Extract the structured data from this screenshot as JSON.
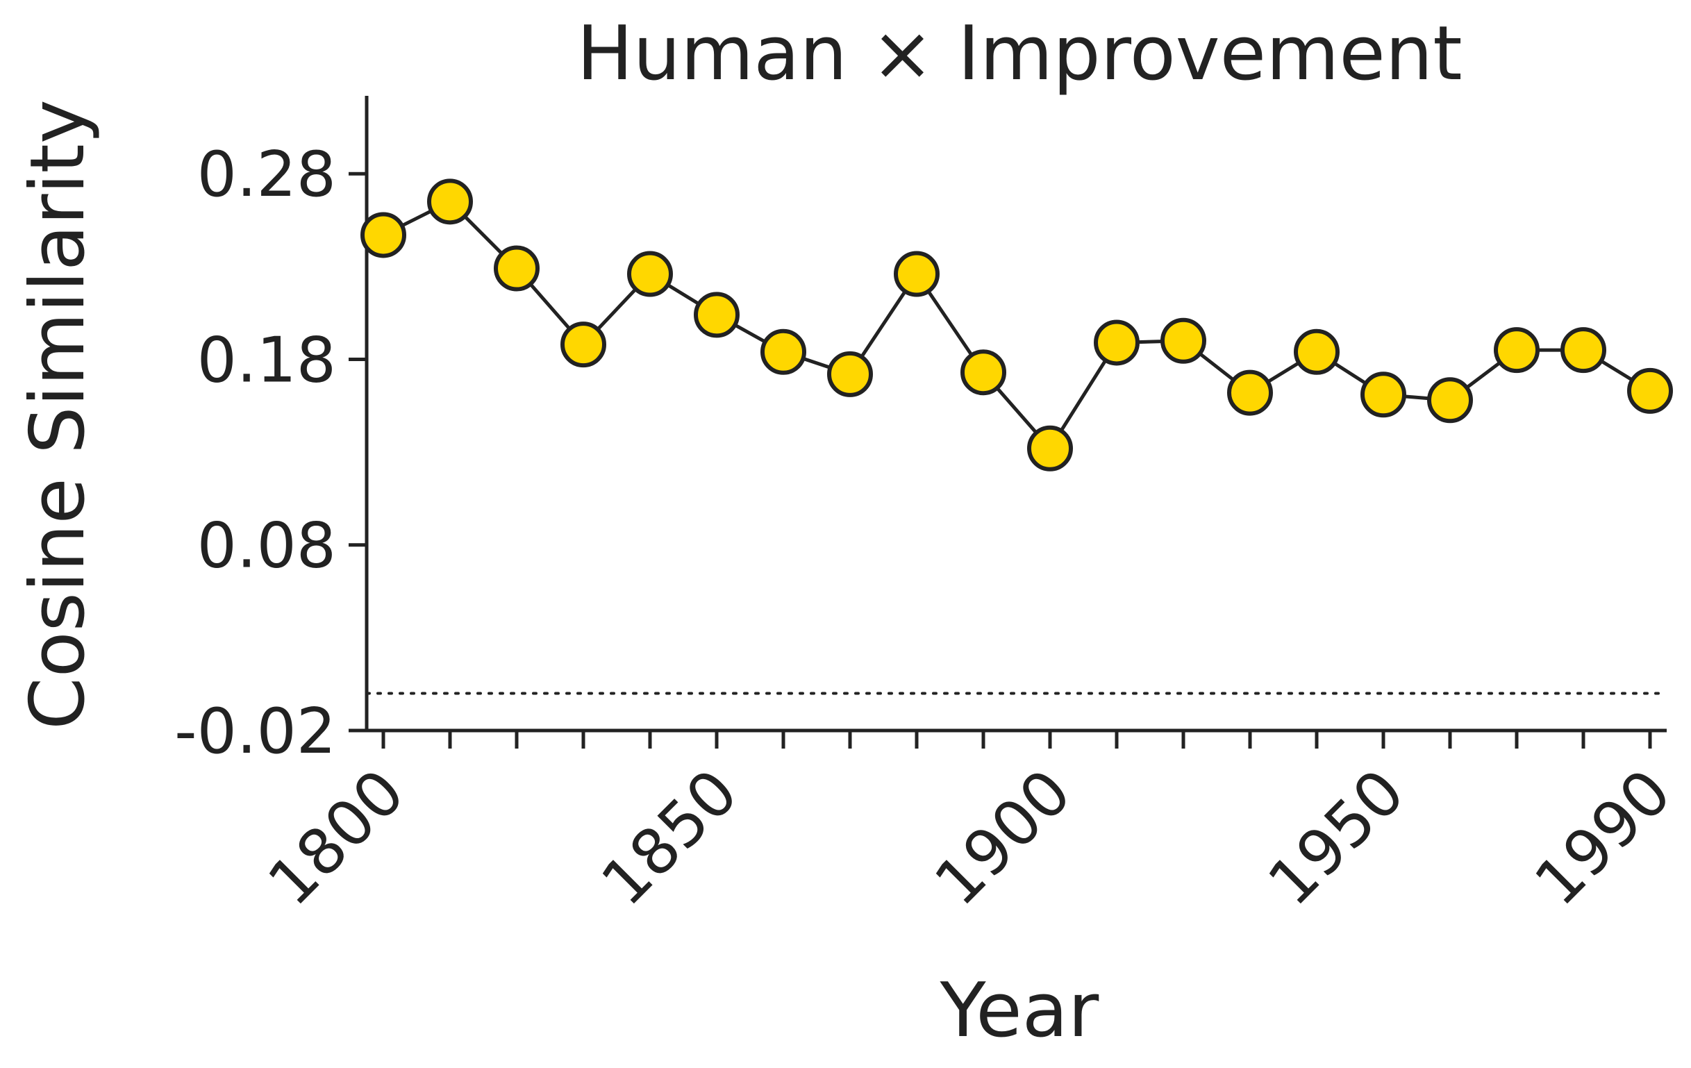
{
  "chart_data": {
    "type": "line",
    "title": "Human × Improvement",
    "xlabel": "Year",
    "ylabel": "Cosine Similarity",
    "x": [
      1800,
      1810,
      1820,
      1830,
      1840,
      1850,
      1860,
      1870,
      1880,
      1890,
      1900,
      1910,
      1920,
      1930,
      1940,
      1950,
      1960,
      1970,
      1980,
      1990
    ],
    "series": [
      {
        "values": [
          0.247,
          0.265,
          0.229,
          0.188,
          0.226,
          0.204,
          0.184,
          0.172,
          0.226,
          0.173,
          0.132,
          0.189,
          0.19,
          0.162,
          0.184,
          0.161,
          0.158,
          0.185,
          0.185,
          0.163
        ],
        "color": "#FFD700"
      }
    ],
    "reference_line": {
      "y": 0.0
    },
    "xlim": [
      1797.5,
      1992.5
    ],
    "ylim": [
      -0.02,
      0.322
    ],
    "yticks": [
      -0.02,
      0.08,
      0.18,
      0.28
    ],
    "ytick_labels": [
      "-0.02",
      "0.08",
      "0.18",
      "0.28"
    ],
    "xtick_labels": [
      "1800",
      "1850",
      "1900",
      "1950",
      "1990"
    ],
    "grid": false,
    "legend": "none"
  }
}
